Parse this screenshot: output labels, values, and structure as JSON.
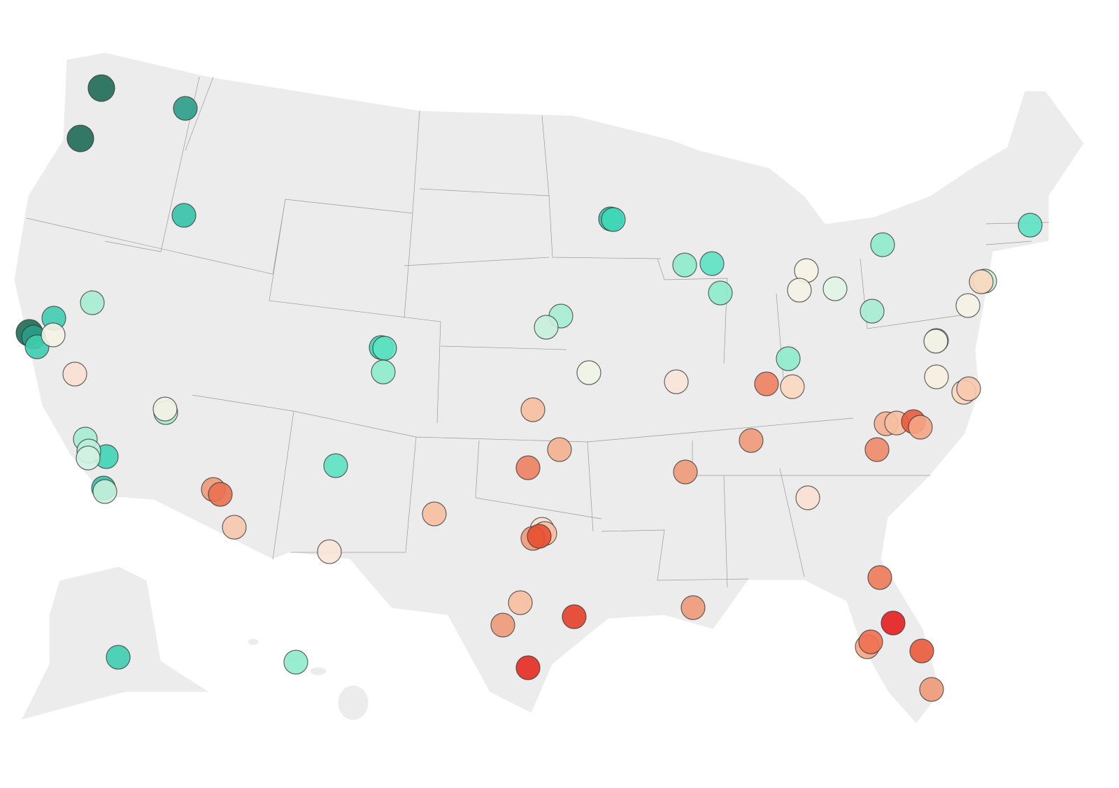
{
  "map": {
    "markers": [
      {
        "color": "#1f6b55"
      },
      {
        "color": "#2a9d87"
      },
      {
        "color": "#1f6b55"
      },
      {
        "color": "#35c3a8"
      },
      {
        "color": "#a6ecd3"
      },
      {
        "color": "#1f6b55"
      },
      {
        "color": "#2a9d87"
      },
      {
        "color": "#3fcdb0"
      },
      {
        "color": "#3fcdb0"
      },
      {
        "color": "#f5f2e6"
      },
      {
        "color": "#fbe0d0"
      },
      {
        "color": "#a6ecd3"
      },
      {
        "color": "#f5f2e6"
      },
      {
        "color": "#a6ecd3"
      },
      {
        "color": "#3fd4b5"
      },
      {
        "color": "#b8f0da"
      },
      {
        "color": "#d0f2e3"
      },
      {
        "color": "#35c3a8"
      },
      {
        "color": "#c8f0dc"
      },
      {
        "color": "#f09a78"
      },
      {
        "color": "#ea7050"
      },
      {
        "color": "#f7c8ae"
      },
      {
        "color": "#fbe5d8"
      },
      {
        "color": "#5de2c2"
      },
      {
        "color": "#3fd4b5"
      },
      {
        "color": "#5de2c2"
      },
      {
        "color": "#8eeccd"
      },
      {
        "color": "#35c3a8"
      },
      {
        "color": "#3fd8b8"
      },
      {
        "color": "#8eeccd"
      },
      {
        "color": "#5de2c2"
      },
      {
        "color": "#8eeccd"
      },
      {
        "color": "#f8f3e6"
      },
      {
        "color": "#f5f2e6"
      },
      {
        "color": "#e0f5e6"
      },
      {
        "color": "#8eeccd"
      },
      {
        "color": "#a6ecd3"
      },
      {
        "color": "#5de2c2"
      },
      {
        "color": "#c8f0dc"
      },
      {
        "color": "#fbd8c0"
      },
      {
        "color": "#f5f2e6"
      },
      {
        "color": "#c8f0dc"
      },
      {
        "color": "#f5f2e6"
      },
      {
        "color": "#f8efe0"
      },
      {
        "color": "#fbd8c0"
      },
      {
        "color": "#f7c8ae"
      },
      {
        "color": "#a6ecd3"
      },
      {
        "color": "#c8f0dc"
      },
      {
        "color": "#f1f5e6"
      },
      {
        "color": "#f7bfa0"
      },
      {
        "color": "#f5b090"
      },
      {
        "color": "#ee8060"
      },
      {
        "color": "#fbe5d8"
      },
      {
        "color": "#ee8060"
      },
      {
        "color": "#fbd8c0"
      },
      {
        "color": "#8eeccd"
      },
      {
        "color": "#f09a78"
      },
      {
        "color": "#f09a78"
      },
      {
        "color": "#fbe0d0"
      },
      {
        "color": "#f5b090"
      },
      {
        "color": "#f7bfa0"
      },
      {
        "color": "#ea5a3a"
      },
      {
        "color": "#f5a585"
      },
      {
        "color": "#ee8a68"
      },
      {
        "color": "#f7bfa0"
      },
      {
        "color": "#fbe0d0"
      },
      {
        "color": "#f7c0a3"
      },
      {
        "color": "#f09a78"
      },
      {
        "color": "#e65030"
      },
      {
        "color": "#f7bfa0"
      },
      {
        "color": "#f09a78"
      },
      {
        "color": "#e6402a"
      },
      {
        "color": "#e62a20"
      },
      {
        "color": "#f09a78"
      },
      {
        "color": "#ee7a58"
      },
      {
        "color": "#e61e1e"
      },
      {
        "color": "#f5a585"
      },
      {
        "color": "#ee7050"
      },
      {
        "color": "#ea5a3a"
      },
      {
        "color": "#f09a78"
      },
      {
        "color": "#3fcdb0"
      },
      {
        "color": "#8eeccd"
      }
    ]
  }
}
